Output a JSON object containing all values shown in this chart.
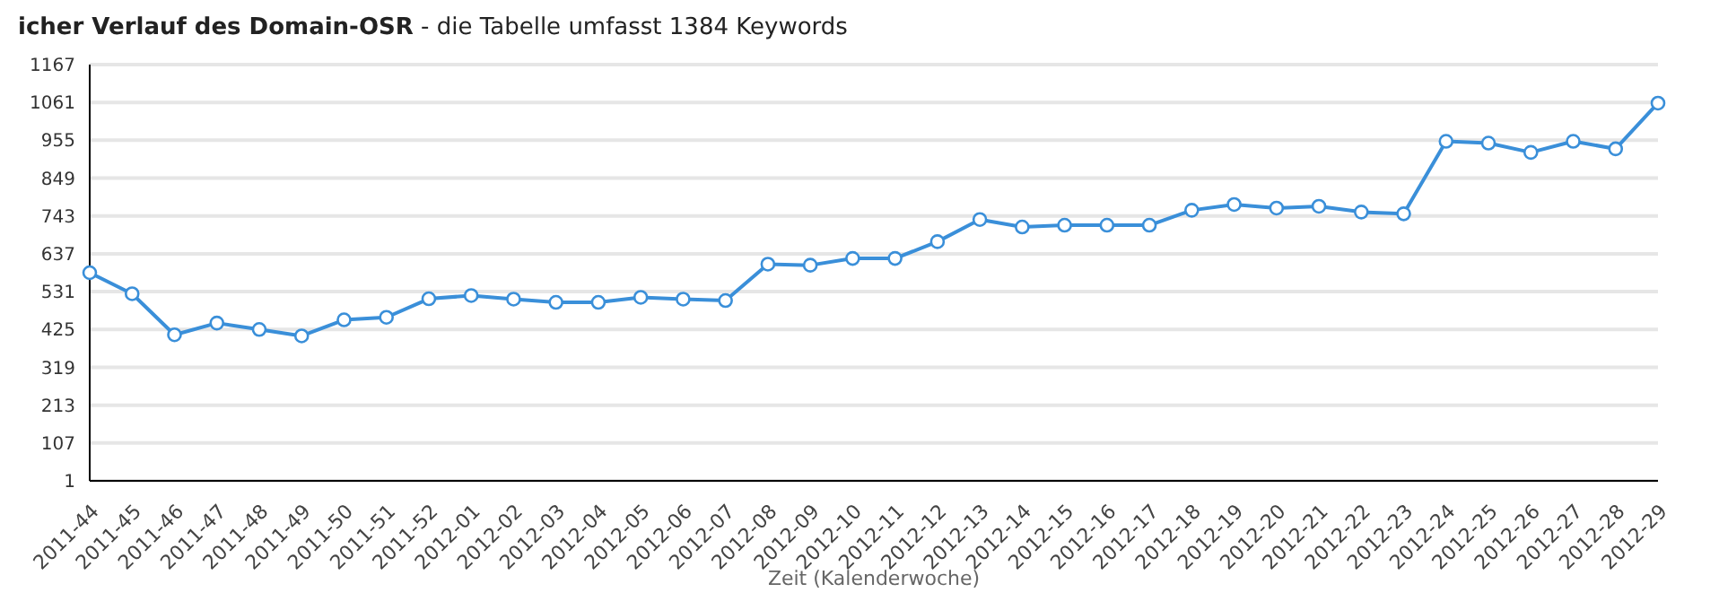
{
  "chart_data": {
    "type": "line",
    "title": "icher Verlauf des Domain-OSR",
    "subtitle": "- die Tabelle umfasst 1384 Keywords",
    "xlabel": "Zeit (Kalenderwoche)",
    "categories": [
      "2011-44",
      "2011-45",
      "2011-46",
      "2011-47",
      "2011-48",
      "2011-49",
      "2011-50",
      "2011-51",
      "2011-52",
      "2012-01",
      "2012-02",
      "2012-03",
      "2012-04",
      "2012-05",
      "2012-06",
      "2012-07",
      "2012-08",
      "2012-09",
      "2012-10",
      "2012-11",
      "2012-12",
      "2012-13",
      "2012-14",
      "2012-15",
      "2012-16",
      "2012-17",
      "2012-18",
      "2012-19",
      "2012-20",
      "2012-21",
      "2012-22",
      "2012-23",
      "2012-24",
      "2012-25",
      "2012-26",
      "2012-27",
      "2012-28",
      "2012-29"
    ],
    "series": [
      {
        "color": "#3a8fd9",
        "values": [
          584,
          525,
          410,
          443,
          425,
          407,
          452,
          459,
          511,
          520,
          510,
          501,
          501,
          515,
          510,
          506,
          608,
          605,
          624,
          624,
          671,
          733,
          712,
          717,
          717,
          717,
          759,
          775,
          765,
          770,
          754,
          749,
          952,
          947,
          921,
          952,
          931,
          1059
        ]
      }
    ],
    "ylim": [
      1,
      1167
    ],
    "yticks": [
      1,
      107,
      213,
      319,
      425,
      531,
      637,
      743,
      849,
      955,
      1061,
      1167
    ],
    "grid": "y",
    "marker": "circle",
    "line_style": "solid"
  }
}
